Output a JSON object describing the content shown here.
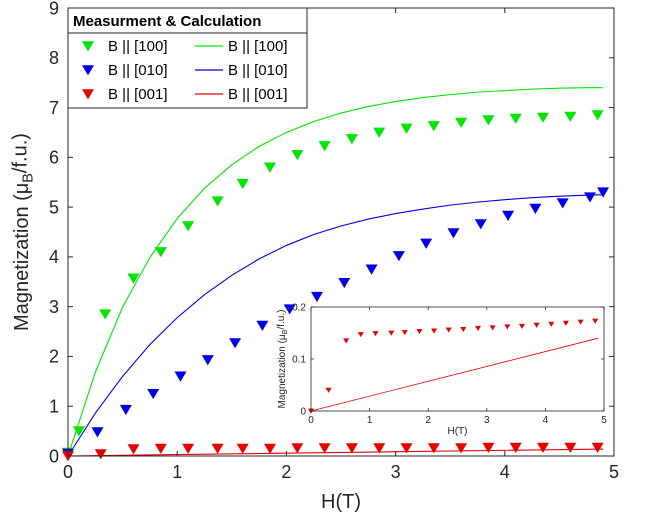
{
  "chart_data": [
    {
      "type": "scatter",
      "xlabel": "H(T)",
      "ylabel": "Magnetization (μ_B/f.u.)",
      "xlim": [
        0,
        5
      ],
      "ylim": [
        0,
        9
      ],
      "xticks": [
        "0",
        "1",
        "2",
        "3",
        "4",
        "5"
      ],
      "yticks": [
        "0",
        "1",
        "2",
        "3",
        "4",
        "5",
        "6",
        "7",
        "8",
        "9"
      ],
      "grid": false,
      "legend": {
        "title": "Measurment & Calculation",
        "placement": "top-left",
        "entries": [
          {
            "marker_label": "B || [100]",
            "line_label": "B || [100]",
            "color": "#00e600"
          },
          {
            "marker_label": "B || [010]",
            "line_label": "B || [010]",
            "color": "#0000e6"
          },
          {
            "marker_label": "B || [001]",
            "line_label": "B || [001]",
            "color": "#e60000"
          }
        ]
      },
      "series": [
        {
          "name": "B || [100]",
          "kind": "measurement",
          "color": "#00e600",
          "x": [
            0.0,
            0.1,
            0.34,
            0.6,
            0.85,
            1.1,
            1.37,
            1.6,
            1.85,
            2.1,
            2.35,
            2.6,
            2.85,
            3.1,
            3.35,
            3.6,
            3.85,
            4.1,
            4.35,
            4.6,
            4.85
          ],
          "y": [
            0.07,
            0.5,
            2.85,
            3.57,
            4.1,
            4.62,
            5.12,
            5.47,
            5.8,
            6.05,
            6.23,
            6.37,
            6.5,
            6.58,
            6.63,
            6.7,
            6.75,
            6.78,
            6.8,
            6.82,
            6.85
          ]
        },
        {
          "name": "B || [010]",
          "kind": "measurement",
          "color": "#0000e6",
          "x": [
            0.0,
            0.27,
            0.53,
            0.78,
            1.03,
            1.28,
            1.53,
            1.78,
            2.03,
            2.28,
            2.53,
            2.78,
            3.03,
            3.28,
            3.53,
            3.78,
            4.03,
            4.28,
            4.53,
            4.78,
            4.9
          ],
          "y": [
            0.05,
            0.48,
            0.93,
            1.25,
            1.6,
            1.93,
            2.27,
            2.62,
            2.95,
            3.2,
            3.48,
            3.75,
            4.02,
            4.27,
            4.48,
            4.66,
            4.83,
            4.97,
            5.08,
            5.2,
            5.3
          ]
        },
        {
          "name": "B || [001]",
          "kind": "measurement",
          "color": "#e60000",
          "x": [
            0.0,
            0.3,
            0.6,
            0.85,
            1.1,
            1.37,
            1.6,
            1.85,
            2.1,
            2.35,
            2.6,
            2.85,
            3.1,
            3.35,
            3.6,
            3.85,
            4.1,
            4.35,
            4.6,
            4.85
          ],
          "y": [
            0.0,
            0.04,
            0.14,
            0.15,
            0.15,
            0.15,
            0.15,
            0.15,
            0.16,
            0.16,
            0.16,
            0.16,
            0.16,
            0.16,
            0.16,
            0.17,
            0.17,
            0.17,
            0.17,
            0.17
          ]
        },
        {
          "name": "B || [100]",
          "kind": "calculation",
          "color": "#00e600",
          "x": [
            0,
            0.25,
            0.5,
            0.75,
            1.0,
            1.25,
            1.5,
            1.75,
            2.0,
            2.25,
            2.5,
            2.75,
            3.0,
            3.25,
            3.5,
            3.75,
            4.0,
            4.25,
            4.5,
            4.75,
            4.9
          ],
          "y": [
            0,
            1.68,
            2.99,
            3.99,
            4.77,
            5.38,
            5.85,
            6.22,
            6.5,
            6.72,
            6.89,
            7.02,
            7.12,
            7.2,
            7.26,
            7.31,
            7.34,
            7.37,
            7.39,
            7.4,
            7.4
          ]
        },
        {
          "name": "B || [010]",
          "kind": "calculation",
          "color": "#0000e6",
          "x": [
            0,
            0.25,
            0.5,
            0.75,
            1.0,
            1.25,
            1.5,
            1.75,
            2.0,
            2.25,
            2.5,
            2.75,
            3.0,
            3.25,
            3.5,
            3.75,
            4.0,
            4.25,
            4.5,
            4.75,
            4.9
          ],
          "y": [
            0,
            0.86,
            1.6,
            2.24,
            2.78,
            3.24,
            3.63,
            3.96,
            4.23,
            4.45,
            4.62,
            4.76,
            4.87,
            4.96,
            5.04,
            5.1,
            5.15,
            5.19,
            5.22,
            5.24,
            5.25
          ]
        },
        {
          "name": "B || [001]",
          "kind": "calculation",
          "color": "#e60000",
          "x": [
            0,
            4.9
          ],
          "y": [
            0,
            0.14
          ]
        }
      ]
    },
    {
      "type": "scatter",
      "role": "inset",
      "xlabel": "H(T)",
      "ylabel": "Magnetization (μ_B/f.u.)",
      "xlim": [
        0,
        5
      ],
      "ylim": [
        0,
        0.2
      ],
      "xticks": [
        "0",
        "1",
        "2",
        "3",
        "4",
        "5"
      ],
      "yticks": [
        "0",
        "0.1",
        "0.2"
      ],
      "grid": false,
      "series": [
        {
          "name": "B || [001]",
          "kind": "measurement",
          "color": "#e60000",
          "x": [
            0.0,
            0.3,
            0.6,
            0.85,
            1.1,
            1.37,
            1.6,
            1.85,
            2.1,
            2.35,
            2.6,
            2.85,
            3.1,
            3.35,
            3.6,
            3.85,
            4.1,
            4.35,
            4.6,
            4.85
          ],
          "y": [
            0.0,
            0.04,
            0.135,
            0.147,
            0.149,
            0.15,
            0.151,
            0.153,
            0.154,
            0.156,
            0.157,
            0.159,
            0.16,
            0.162,
            0.163,
            0.165,
            0.167,
            0.169,
            0.171,
            0.173
          ]
        },
        {
          "name": "B || [001]",
          "kind": "calculation",
          "color": "#e60000",
          "x": [
            0,
            4.9
          ],
          "y": [
            0,
            0.14
          ]
        }
      ]
    }
  ]
}
